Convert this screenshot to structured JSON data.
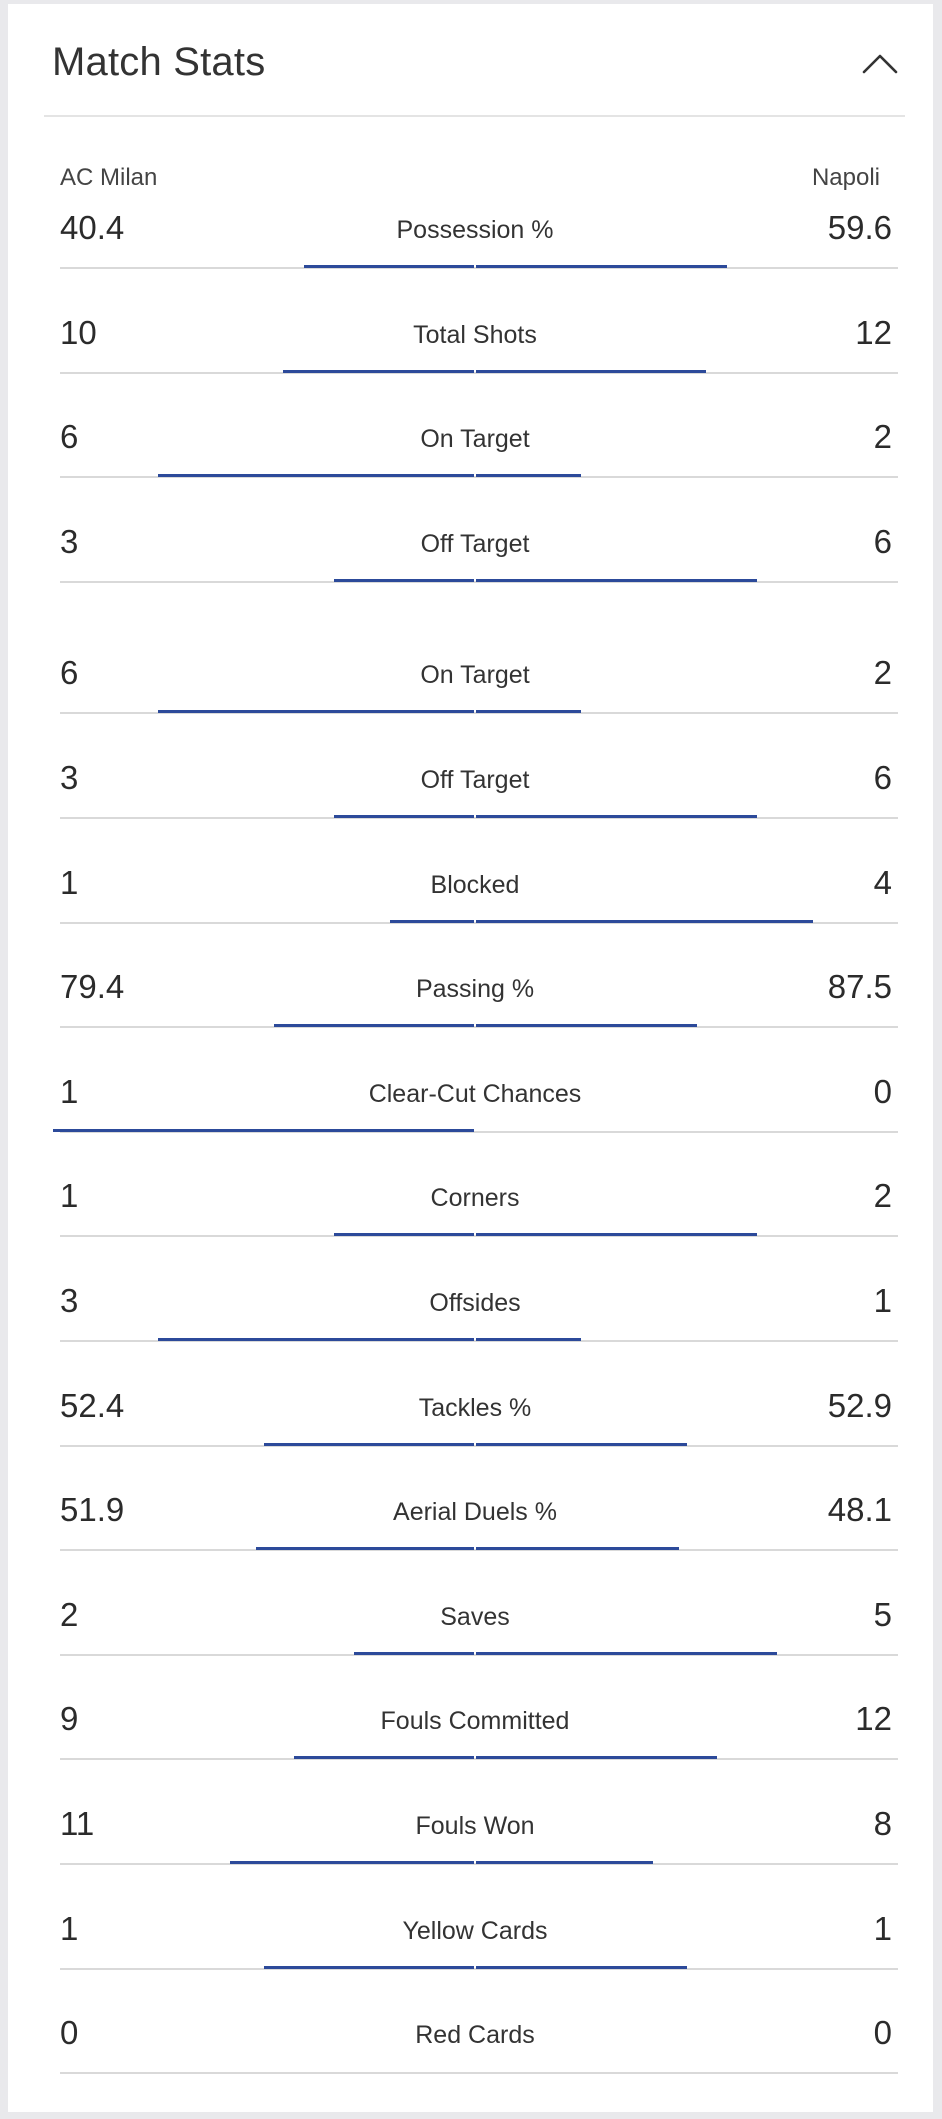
{
  "header": {
    "title": "Match Stats",
    "collapse_icon": "chevron-up-icon"
  },
  "teams": {
    "home": "AC Milan",
    "away": "Napoli"
  },
  "colors": {
    "bar": "#2c4a9a",
    "baseline": "#d9d9d9"
  },
  "stats": [
    {
      "label": "Possession %",
      "home": "40.4",
      "away": "59.6",
      "gap_after": 0
    },
    {
      "label": "Total Shots",
      "home": "10",
      "away": "12",
      "gap_after": 0
    },
    {
      "label": "On Target",
      "home": "6",
      "away": "2",
      "gap_after": 0
    },
    {
      "label": "Off Target",
      "home": "3",
      "away": "6",
      "gap_after": 1
    },
    {
      "label": "On Target",
      "home": "6",
      "away": "2",
      "gap_after": 0
    },
    {
      "label": "Off Target",
      "home": "3",
      "away": "6",
      "gap_after": 0
    },
    {
      "label": "Blocked",
      "home": "1",
      "away": "4",
      "gap_after": 0
    },
    {
      "label": "Passing %",
      "home": "79.4",
      "away": "87.5",
      "gap_after": 0
    },
    {
      "label": "Clear-Cut Chances",
      "home": "1",
      "away": "0",
      "gap_after": 0
    },
    {
      "label": "Corners",
      "home": "1",
      "away": "2",
      "gap_after": 0
    },
    {
      "label": "Offsides",
      "home": "3",
      "away": "1",
      "gap_after": 0
    },
    {
      "label": "Tackles %",
      "home": "52.4",
      "away": "52.9",
      "gap_after": 0
    },
    {
      "label": "Aerial Duels %",
      "home": "51.9",
      "away": "48.1",
      "gap_after": 0
    },
    {
      "label": "Saves",
      "home": "2",
      "away": "5",
      "gap_after": 0
    },
    {
      "label": "Fouls Committed",
      "home": "9",
      "away": "12",
      "gap_after": 0
    },
    {
      "label": "Fouls Won",
      "home": "11",
      "away": "8",
      "gap_after": 0
    },
    {
      "label": "Yellow Cards",
      "home": "1",
      "away": "1",
      "gap_after": 0
    },
    {
      "label": "Red Cards",
      "home": "0",
      "away": "0",
      "gap_after": 0
    }
  ]
}
